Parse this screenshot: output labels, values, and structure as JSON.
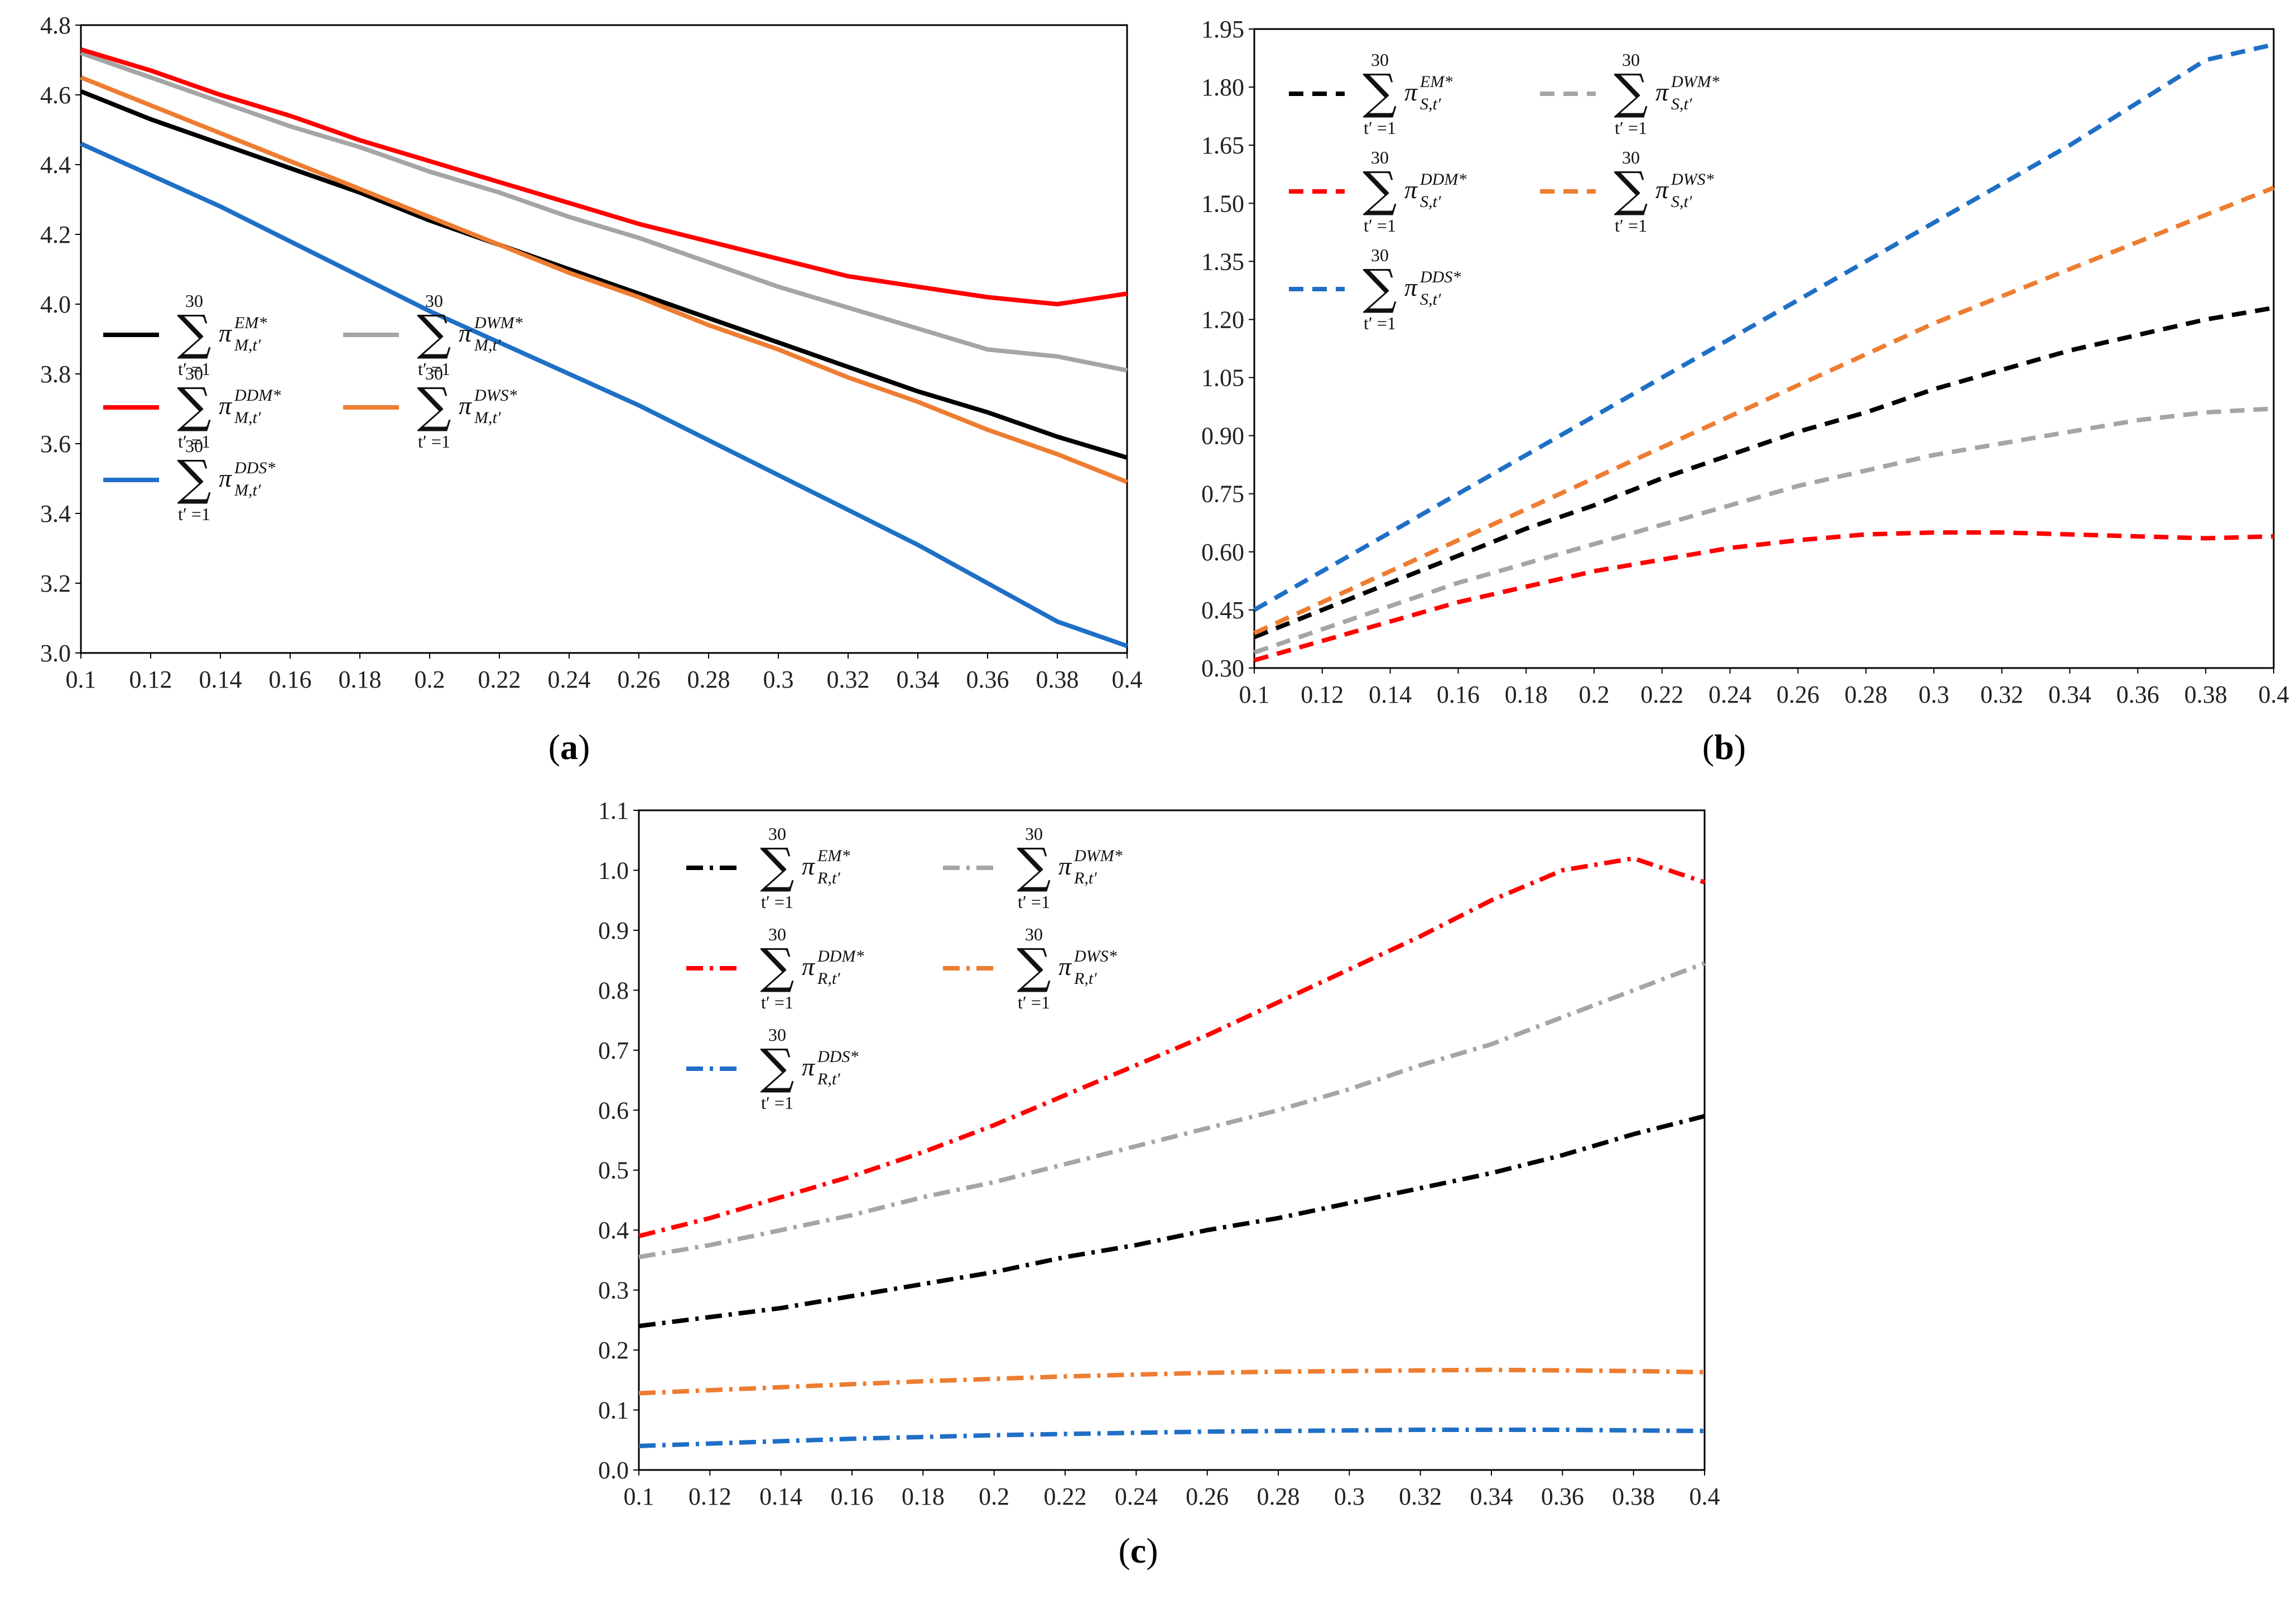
{
  "chart_data": [
    {
      "id": "a",
      "type": "line",
      "caption": "a",
      "x": [
        0.1,
        0.12,
        0.14,
        0.16,
        0.18,
        0.2,
        0.22,
        0.24,
        0.26,
        0.28,
        0.3,
        0.32,
        0.34,
        0.36,
        0.38,
        0.4
      ],
      "xticks": [
        "0.1",
        "0.12",
        "0.14",
        "0.16",
        "0.18",
        "0.2",
        "0.22",
        "0.24",
        "0.26",
        "0.28",
        "0.3",
        "0.32",
        "0.34",
        "0.36",
        "0.38",
        "0.4"
      ],
      "ylim": [
        3.0,
        4.8
      ],
      "yticks": [
        "3.0",
        "3.2",
        "3.4",
        "3.6",
        "3.8",
        "4.0",
        "4.2",
        "4.4",
        "4.6",
        "4.8"
      ],
      "ytick_values": [
        3.0,
        3.2,
        3.4,
        3.6,
        3.8,
        4.0,
        4.2,
        4.4,
        4.6,
        4.8
      ],
      "line_style": "solid",
      "legend_sub": "M",
      "series": [
        {
          "name": "EM*",
          "color": "#000000",
          "values": [
            4.61,
            4.53,
            4.46,
            4.39,
            4.32,
            4.24,
            4.17,
            4.1,
            4.03,
            3.96,
            3.89,
            3.82,
            3.75,
            3.69,
            3.62,
            3.56
          ]
        },
        {
          "name": "DWM*",
          "color": "#a5a5a5",
          "values": [
            4.72,
            4.65,
            4.58,
            4.51,
            4.45,
            4.38,
            4.32,
            4.25,
            4.19,
            4.12,
            4.05,
            3.99,
            3.93,
            3.87,
            3.85,
            3.81
          ]
        },
        {
          "name": "DDM*",
          "color": "#ff0000",
          "values": [
            4.73,
            4.67,
            4.6,
            4.54,
            4.47,
            4.41,
            4.35,
            4.29,
            4.23,
            4.18,
            4.13,
            4.08,
            4.05,
            4.02,
            4.0,
            4.03
          ]
        },
        {
          "name": "DWS*",
          "color": "#ed7d31",
          "values": [
            4.65,
            4.57,
            4.49,
            4.41,
            4.33,
            4.25,
            4.17,
            4.09,
            4.02,
            3.94,
            3.87,
            3.79,
            3.72,
            3.64,
            3.57,
            3.49
          ]
        },
        {
          "name": "DDS*",
          "color": "#1f6fc6",
          "values": [
            4.46,
            4.37,
            4.28,
            4.18,
            4.08,
            3.98,
            3.89,
            3.8,
            3.71,
            3.61,
            3.51,
            3.41,
            3.31,
            3.2,
            3.09,
            3.02
          ]
        }
      ],
      "legend_rows": [
        [
          "EM*",
          "DWM*"
        ],
        [
          "DDM*",
          "DWS*"
        ],
        [
          "DDS*"
        ]
      ]
    },
    {
      "id": "b",
      "type": "line",
      "caption": "b",
      "x": [
        0.1,
        0.12,
        0.14,
        0.16,
        0.18,
        0.2,
        0.22,
        0.24,
        0.26,
        0.28,
        0.3,
        0.32,
        0.34,
        0.36,
        0.38,
        0.4
      ],
      "xticks": [
        "0.1",
        "0.12",
        "0.14",
        "0.16",
        "0.18",
        "0.2",
        "0.22",
        "0.24",
        "0.26",
        "0.28",
        "0.3",
        "0.32",
        "0.34",
        "0.36",
        "0.38",
        "0.4"
      ],
      "ylim": [
        0.3,
        1.95
      ],
      "yticks": [
        "0.30",
        "0.45",
        "0.60",
        "0.75",
        "0.90",
        "1.05",
        "1.20",
        "1.35",
        "1.50",
        "1.65",
        "1.80",
        "1.95"
      ],
      "ytick_values": [
        0.3,
        0.45,
        0.6,
        0.75,
        0.9,
        1.05,
        1.2,
        1.35,
        1.5,
        1.65,
        1.8,
        1.95
      ],
      "line_style": "dashed",
      "legend_sub": "S",
      "series": [
        {
          "name": "EM*",
          "color": "#000000",
          "values": [
            0.38,
            0.45,
            0.52,
            0.59,
            0.66,
            0.72,
            0.79,
            0.85,
            0.91,
            0.96,
            1.02,
            1.07,
            1.12,
            1.16,
            1.2,
            1.23
          ]
        },
        {
          "name": "DWM*",
          "color": "#a5a5a5",
          "values": [
            0.34,
            0.4,
            0.46,
            0.52,
            0.57,
            0.62,
            0.67,
            0.72,
            0.77,
            0.81,
            0.85,
            0.88,
            0.91,
            0.94,
            0.96,
            0.97
          ]
        },
        {
          "name": "DDM*",
          "color": "#ff0000",
          "values": [
            0.32,
            0.37,
            0.42,
            0.47,
            0.51,
            0.55,
            0.58,
            0.61,
            0.63,
            0.645,
            0.65,
            0.65,
            0.645,
            0.64,
            0.635,
            0.64
          ]
        },
        {
          "name": "DWS*",
          "color": "#ed7d31",
          "values": [
            0.39,
            0.47,
            0.55,
            0.63,
            0.71,
            0.79,
            0.87,
            0.95,
            1.03,
            1.11,
            1.19,
            1.26,
            1.33,
            1.4,
            1.47,
            1.54
          ]
        },
        {
          "name": "DDS*",
          "color": "#1f6fc6",
          "values": [
            0.45,
            0.55,
            0.65,
            0.75,
            0.85,
            0.95,
            1.05,
            1.15,
            1.25,
            1.35,
            1.45,
            1.55,
            1.65,
            1.76,
            1.87,
            1.91
          ]
        }
      ],
      "legend_rows": [
        [
          "EM*",
          "DWM*"
        ],
        [
          "DDM*",
          "DWS*"
        ],
        [
          "DDS*"
        ]
      ]
    },
    {
      "id": "c",
      "type": "line",
      "caption": "c",
      "x": [
        0.1,
        0.12,
        0.14,
        0.16,
        0.18,
        0.2,
        0.22,
        0.24,
        0.26,
        0.28,
        0.3,
        0.32,
        0.34,
        0.36,
        0.38,
        0.4
      ],
      "xticks": [
        "0.1",
        "0.12",
        "0.14",
        "0.16",
        "0.18",
        "0.2",
        "0.22",
        "0.24",
        "0.26",
        "0.28",
        "0.3",
        "0.32",
        "0.34",
        "0.36",
        "0.38",
        "0.4"
      ],
      "ylim": [
        0.0,
        1.1
      ],
      "yticks": [
        "0.0",
        "0.1",
        "0.2",
        "0.3",
        "0.4",
        "0.5",
        "0.6",
        "0.7",
        "0.8",
        "0.9",
        "1.0",
        "1.1"
      ],
      "ytick_values": [
        0.0,
        0.1,
        0.2,
        0.3,
        0.4,
        0.5,
        0.6,
        0.7,
        0.8,
        0.9,
        1.0,
        1.1
      ],
      "line_style": "dashdot",
      "legend_sub": "R",
      "series": [
        {
          "name": "EM*",
          "color": "#000000",
          "values": [
            0.24,
            0.255,
            0.27,
            0.29,
            0.31,
            0.33,
            0.355,
            0.375,
            0.4,
            0.42,
            0.445,
            0.47,
            0.495,
            0.525,
            0.56,
            0.59
          ]
        },
        {
          "name": "DWM*",
          "color": "#a5a5a5",
          "values": [
            0.355,
            0.375,
            0.4,
            0.425,
            0.455,
            0.48,
            0.51,
            0.54,
            0.57,
            0.6,
            0.635,
            0.675,
            0.71,
            0.755,
            0.8,
            0.845
          ]
        },
        {
          "name": "DDM*",
          "color": "#ff0000",
          "values": [
            0.39,
            0.42,
            0.455,
            0.49,
            0.53,
            0.575,
            0.625,
            0.675,
            0.725,
            0.78,
            0.835,
            0.89,
            0.95,
            1.0,
            1.02,
            0.98
          ]
        },
        {
          "name": "DWS*",
          "color": "#ed7d31",
          "values": [
            0.128,
            0.133,
            0.138,
            0.143,
            0.148,
            0.152,
            0.156,
            0.159,
            0.162,
            0.164,
            0.165,
            0.166,
            0.167,
            0.166,
            0.165,
            0.163
          ]
        },
        {
          "name": "DDS*",
          "color": "#1f6fc6",
          "values": [
            0.04,
            0.044,
            0.048,
            0.052,
            0.055,
            0.058,
            0.06,
            0.062,
            0.064,
            0.065,
            0.066,
            0.067,
            0.067,
            0.067,
            0.066,
            0.065
          ]
        }
      ],
      "legend_rows": [
        [
          "EM*",
          "DWM*"
        ],
        [
          "DDM*",
          "DWS*"
        ],
        [
          "DDS*"
        ]
      ]
    }
  ],
  "legend_text": {
    "sum_symbol": "∑",
    "upper_limit": "30",
    "lower_limit": "t′ =1",
    "pi_symbol": "π",
    "time_sub": ",t′"
  }
}
